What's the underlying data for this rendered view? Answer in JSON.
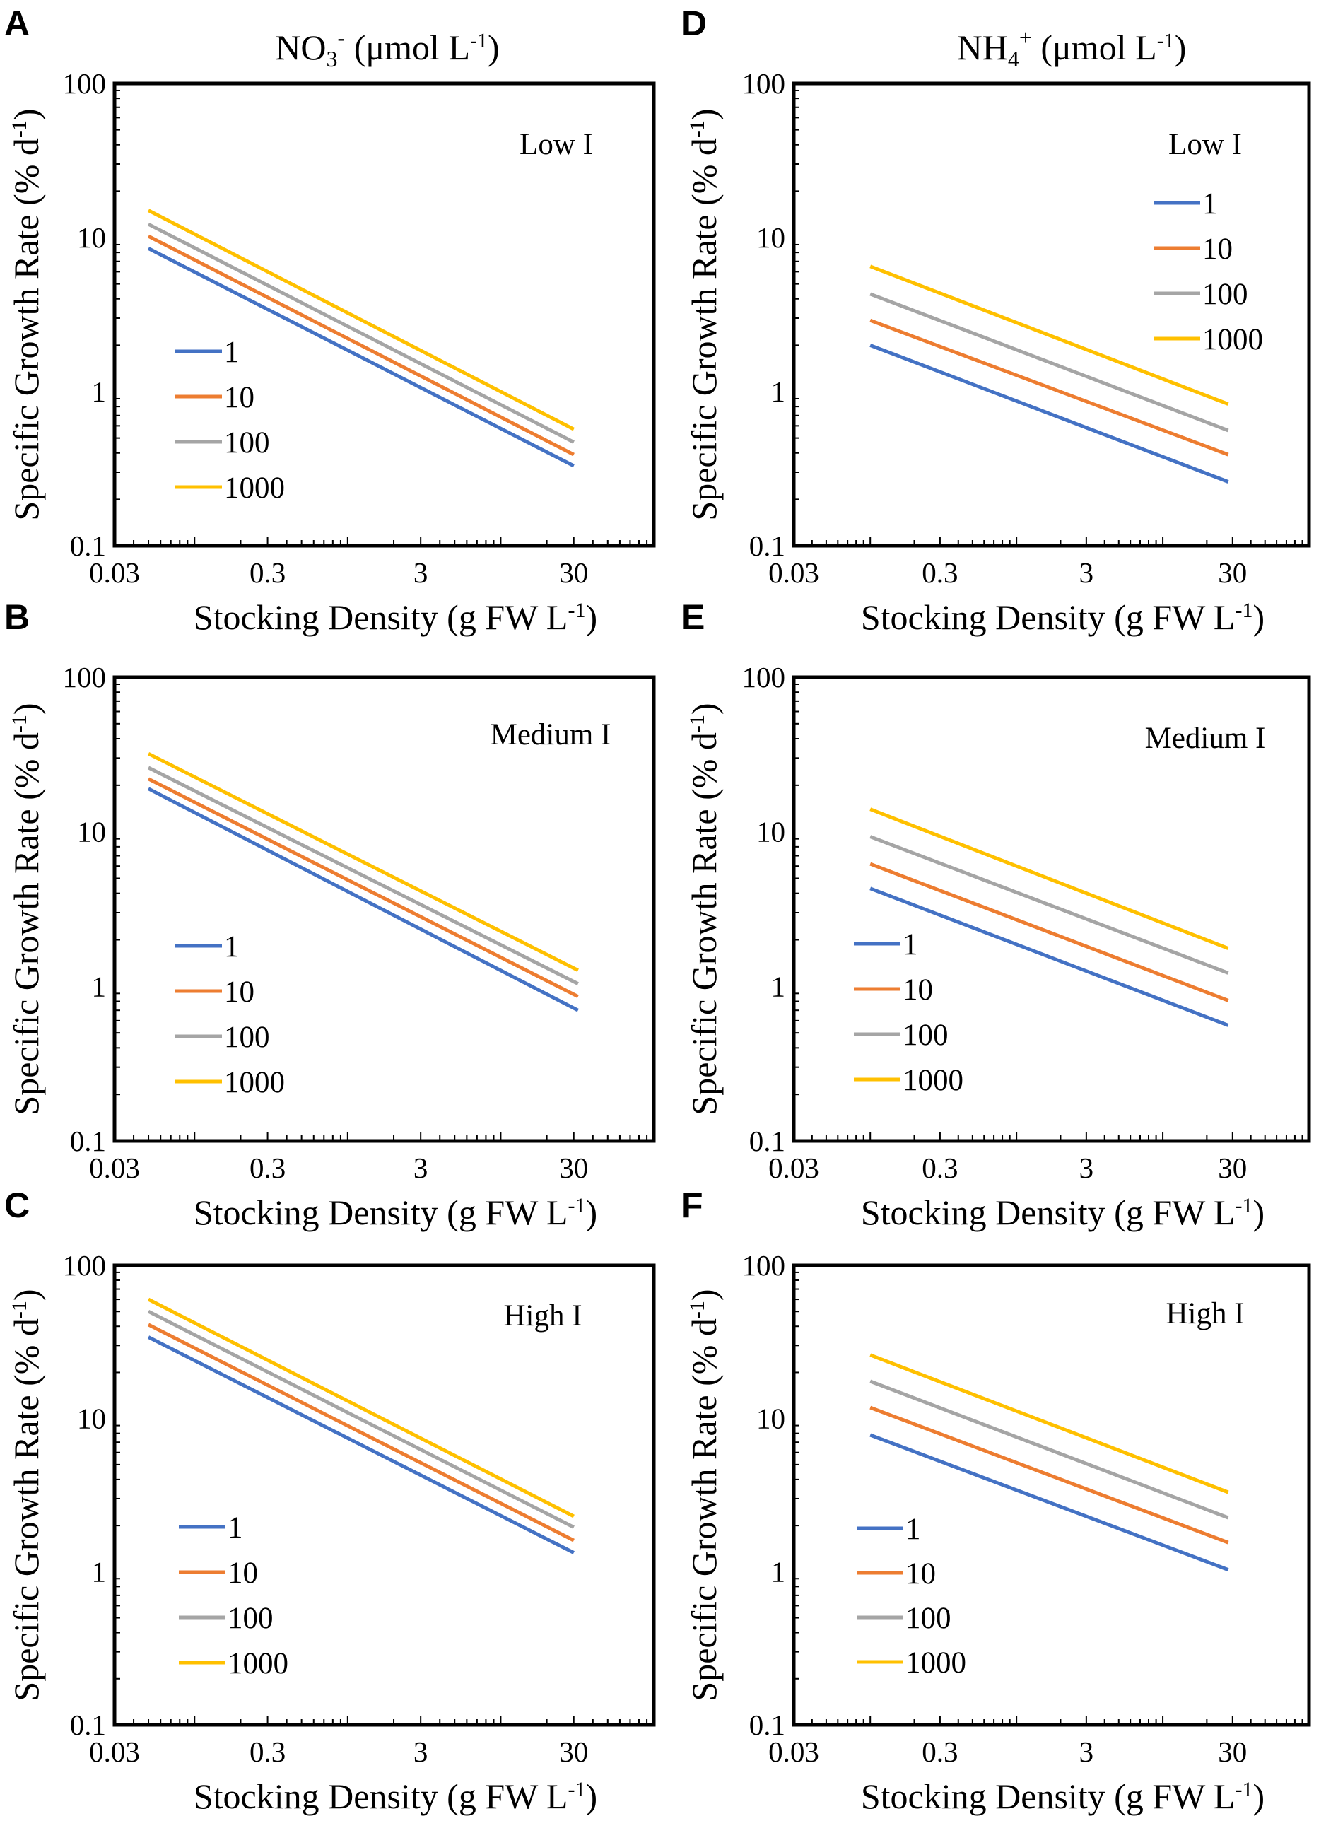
{
  "figure": {
    "column_titles": [
      {
        "main": "NO",
        "sub": "3",
        "sup": "-",
        "unit_pre": "  (μmol L",
        "unit_sup": "-1",
        "unit_post": ")"
      },
      {
        "main": "NH",
        "sub": "4",
        "sup": "+",
        "unit_pre": " (μmol L",
        "unit_sup": "-1",
        "unit_post": ")"
      }
    ],
    "series_colors": {
      "1": "#4472c4",
      "10": "#ed7d31",
      "100": "#a5a5a5",
      "1000": "#ffc000"
    }
  },
  "chart_data": [
    {
      "panel": "A",
      "type": "line",
      "title": "Low I",
      "xlabel": "Stocking Density (g FW L-1)",
      "ylabel": "Specific Growth Rate (% d-1)",
      "xscale": "log",
      "yscale": "log",
      "xlim": [
        0.03,
        100
      ],
      "ylim": [
        0.1,
        100
      ],
      "xticks": [
        "0.03",
        "0.3",
        "3",
        "30"
      ],
      "yticks": [
        "0.1",
        "1",
        "10",
        "100"
      ],
      "legend_position": "left-middle",
      "series": [
        {
          "name": "1",
          "x": [
            0.05,
            30
          ],
          "y": [
            8.5,
            0.33
          ]
        },
        {
          "name": "10",
          "x": [
            0.05,
            30
          ],
          "y": [
            10.2,
            0.39
          ]
        },
        {
          "name": "100",
          "x": [
            0.05,
            30
          ],
          "y": [
            12.2,
            0.47
          ]
        },
        {
          "name": "1000",
          "x": [
            0.05,
            30
          ],
          "y": [
            15,
            0.57
          ]
        }
      ]
    },
    {
      "panel": "B",
      "type": "line",
      "title": "Medium I",
      "xlabel": "Stocking Density (g FW L-1)",
      "ylabel": "Specific Growth Rate (% d-1)",
      "xscale": "log",
      "yscale": "log",
      "xlim": [
        0.03,
        100
      ],
      "ylim": [
        0.1,
        100
      ],
      "xticks": [
        "0.03",
        "0.3",
        "3",
        "30"
      ],
      "yticks": [
        "0.1",
        "1",
        "10",
        "100"
      ],
      "legend_position": "left-bottom",
      "series": [
        {
          "name": "1",
          "x": [
            0.05,
            32
          ],
          "y": [
            19,
            0.7
          ]
        },
        {
          "name": "10",
          "x": [
            0.05,
            32
          ],
          "y": [
            22,
            0.86
          ]
        },
        {
          "name": "100",
          "x": [
            0.05,
            32
          ],
          "y": [
            26,
            1.04
          ]
        },
        {
          "name": "1000",
          "x": [
            0.05,
            32
          ],
          "y": [
            32,
            1.27
          ]
        }
      ]
    },
    {
      "panel": "C",
      "type": "line",
      "title": "High I",
      "xlabel": "Stocking Density (g FW L-1)",
      "ylabel": "Specific Growth Rate (% d-1)",
      "xscale": "log",
      "yscale": "log",
      "xlim": [
        0.03,
        100
      ],
      "ylim": [
        0.1,
        100
      ],
      "xticks": [
        "0.03",
        "0.3",
        "3",
        "30"
      ],
      "yticks": [
        "0.1",
        "1",
        "10",
        "100"
      ],
      "legend_position": "left-bottom",
      "series": [
        {
          "name": "1",
          "x": [
            0.05,
            30
          ],
          "y": [
            34,
            1.33
          ]
        },
        {
          "name": "10",
          "x": [
            0.05,
            30
          ],
          "y": [
            41,
            1.6
          ]
        },
        {
          "name": "100",
          "x": [
            0.05,
            30
          ],
          "y": [
            50,
            1.95
          ]
        },
        {
          "name": "1000",
          "x": [
            0.05,
            30
          ],
          "y": [
            60,
            2.3
          ]
        }
      ]
    },
    {
      "panel": "D",
      "type": "line",
      "title": "Low I",
      "xlabel": "Stocking Density (g FW L-1)",
      "ylabel": "Specific Growth Rate (% d-1)",
      "xscale": "log",
      "yscale": "log",
      "xlim": [
        0.03,
        100
      ],
      "ylim": [
        0.1,
        100
      ],
      "xticks": [
        "0.03",
        "0.3",
        "3",
        "30"
      ],
      "yticks": [
        "0.1",
        "1",
        "10",
        "100"
      ],
      "legend_position": "top-right",
      "series": [
        {
          "name": "1",
          "x": [
            0.1,
            28
          ],
          "y": [
            2.0,
            0.26
          ]
        },
        {
          "name": "10",
          "x": [
            0.1,
            28
          ],
          "y": [
            2.9,
            0.39
          ]
        },
        {
          "name": "100",
          "x": [
            0.1,
            28
          ],
          "y": [
            4.3,
            0.56
          ]
        },
        {
          "name": "1000",
          "x": [
            0.1,
            28
          ],
          "y": [
            6.5,
            0.83
          ]
        }
      ]
    },
    {
      "panel": "E",
      "type": "line",
      "title": "Medium I",
      "xlabel": "Stocking Density (g FW L-1)",
      "ylabel": "Specific Growth Rate (% d-1)",
      "xscale": "log",
      "yscale": "log",
      "xlim": [
        0.03,
        100
      ],
      "ylim": [
        0.1,
        100
      ],
      "xticks": [
        "0.03",
        "0.3",
        "3",
        "30"
      ],
      "yticks": [
        "0.1",
        "1",
        "10",
        "100"
      ],
      "legend_position": "left-bottom",
      "series": [
        {
          "name": "1",
          "x": [
            0.1,
            28
          ],
          "y": [
            4.3,
            0.56
          ]
        },
        {
          "name": "10",
          "x": [
            0.1,
            28
          ],
          "y": [
            6.2,
            0.81
          ]
        },
        {
          "name": "100",
          "x": [
            0.1,
            28
          ],
          "y": [
            9.3,
            1.22
          ]
        },
        {
          "name": "1000",
          "x": [
            0.1,
            28
          ],
          "y": [
            14,
            1.76
          ]
        }
      ]
    },
    {
      "panel": "F",
      "type": "line",
      "title": "High I",
      "xlabel": "Stocking Density (g FW L-1)",
      "ylabel": "Specific Growth Rate (% d-1)",
      "xscale": "log",
      "yscale": "log",
      "xlim": [
        0.03,
        100
      ],
      "ylim": [
        0.1,
        100
      ],
      "xticks": [
        "0.03",
        "0.3",
        "3",
        "30"
      ],
      "yticks": [
        "0.1",
        "1",
        "10",
        "100"
      ],
      "legend_position": "left-bottom",
      "series": [
        {
          "name": "1",
          "x": [
            0.1,
            28
          ],
          "y": [
            7.8,
            1.03
          ]
        },
        {
          "name": "10",
          "x": [
            0.1,
            28
          ],
          "y": [
            11.8,
            1.55
          ]
        },
        {
          "name": "100",
          "x": [
            0.1,
            28
          ],
          "y": [
            17.5,
            2.25
          ]
        },
        {
          "name": "1000",
          "x": [
            0.1,
            28
          ],
          "y": [
            26,
            3.3
          ]
        }
      ]
    }
  ]
}
